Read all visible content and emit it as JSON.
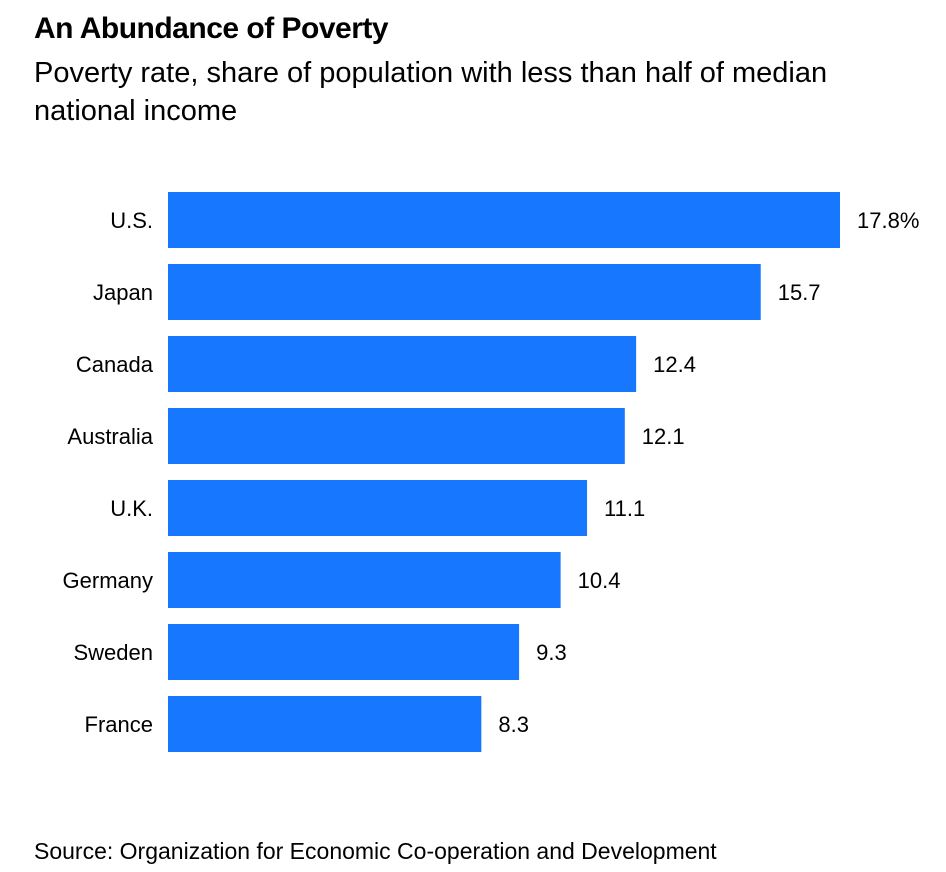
{
  "chart_data": {
    "type": "bar",
    "orientation": "horizontal",
    "title": "An Abundance of Poverty",
    "subtitle": "Poverty rate, share of population with less than half of median national income",
    "categories": [
      "U.S.",
      "Japan",
      "Canada",
      "Australia",
      "U.K.",
      "Germany",
      "Sweden",
      "France"
    ],
    "values": [
      17.8,
      15.7,
      12.4,
      12.1,
      11.1,
      10.4,
      9.3,
      8.3
    ],
    "value_labels": [
      "17.8%",
      "15.7",
      "12.4",
      "12.1",
      "11.1",
      "10.4",
      "9.3",
      "8.3"
    ],
    "xlabel": "",
    "ylabel": "",
    "xlim": [
      0,
      17.8
    ],
    "grid": false,
    "legend": "none",
    "bar_color": "#1877FF",
    "source": "Source: Organization for Economic Co-operation and Development"
  }
}
